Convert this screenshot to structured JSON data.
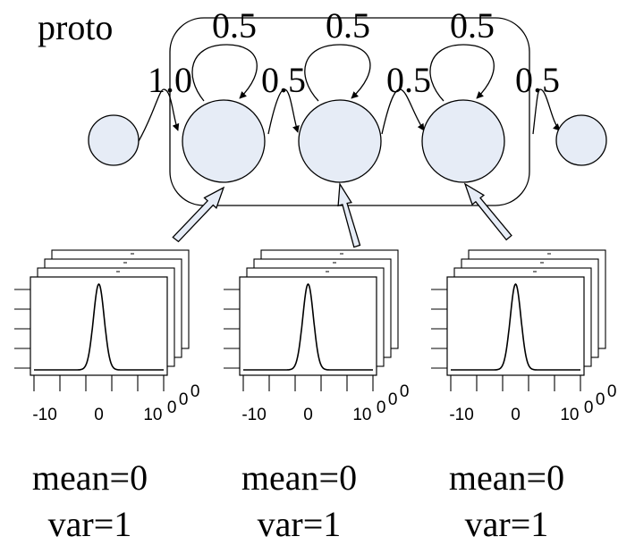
{
  "hmm": {
    "name": "proto",
    "state_fill": "#e6ecf6",
    "self_transitions": [
      "0.5",
      "0.5",
      "0.5"
    ],
    "transitions": [
      "1.0",
      "0.5",
      "0.5",
      "0.5"
    ]
  },
  "emissions": [
    {
      "mean_label": "mean=0",
      "var_label": "var=1",
      "ticks": [
        "-10",
        "0",
        "10"
      ],
      "stack_ticks": [
        "0",
        "0",
        "0"
      ]
    },
    {
      "mean_label": "mean=0",
      "var_label": "var=1",
      "ticks": [
        "-10",
        "0",
        "10"
      ],
      "stack_ticks": [
        "0",
        "0",
        "0"
      ]
    },
    {
      "mean_label": "mean=0",
      "var_label": "var=1",
      "ticks": [
        "-10",
        "0",
        "10"
      ],
      "stack_ticks": [
        "0",
        "0",
        "0"
      ]
    }
  ]
}
